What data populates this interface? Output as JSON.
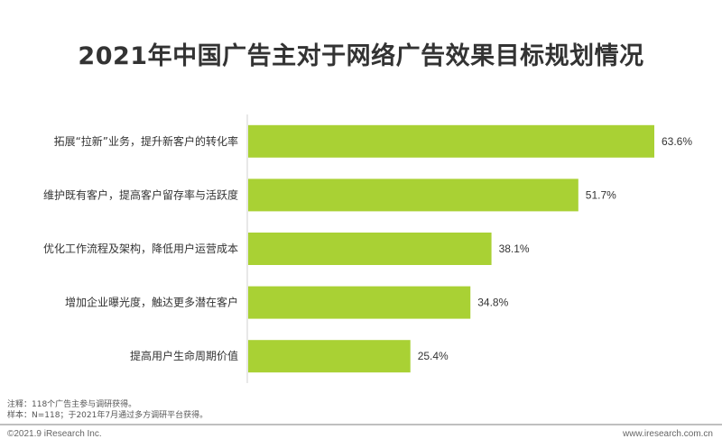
{
  "title": "2021年中国广告主对于网络广告效果目标规划情况",
  "chart_data": {
    "type": "bar",
    "orientation": "horizontal",
    "categories": [
      "拓展“拉新”业务，提升新客户的转化率",
      "维护既有客户，提高客户留存率与活跃度",
      "优化工作流程及架构，降低用户运营成本",
      "增加企业曝光度，触达更多潜在客户",
      "提高用户生命周期价值"
    ],
    "values": [
      63.6,
      51.7,
      38.1,
      34.8,
      25.4
    ],
    "value_labels": [
      "63.6%",
      "51.7%",
      "38.1%",
      "34.8%",
      "25.4%"
    ],
    "xlim": [
      0,
      70
    ],
    "bar_color": "#a9d134",
    "axis_color": "#d0d0d0",
    "grid": false,
    "legend": "none"
  },
  "notes": {
    "line1": "注释：118个广告主参与调研获得。",
    "line2": "样本：N=118；于2021年7月通过多方调研平台获得。"
  },
  "footer": {
    "copyright": "©2021.9 iResearch Inc.",
    "website": "www.iresearch.com.cn"
  }
}
